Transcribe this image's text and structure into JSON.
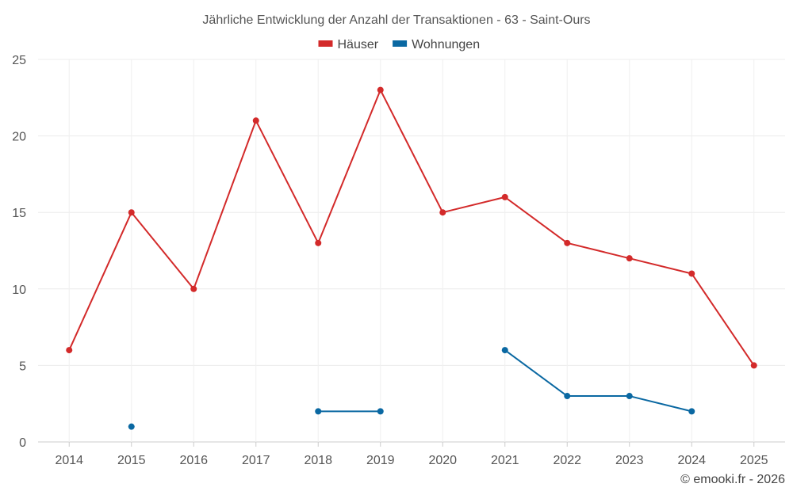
{
  "chart_data": {
    "type": "line",
    "title": "Jährliche Entwicklung der Anzahl der Transaktionen - 63 - Saint-Ours",
    "categories": [
      "2014",
      "2015",
      "2016",
      "2017",
      "2018",
      "2019",
      "2020",
      "2021",
      "2022",
      "2023",
      "2024",
      "2025"
    ],
    "ylim": [
      0,
      25
    ],
    "yticks": [
      0,
      5,
      10,
      15,
      20,
      25
    ],
    "grid": true,
    "legend_position": "top-center",
    "series": [
      {
        "name": "Häuser",
        "color": "#d32a2a",
        "values": [
          6,
          15,
          10,
          21,
          13,
          23,
          15,
          16,
          13,
          12,
          11,
          5
        ]
      },
      {
        "name": "Wohnungen",
        "color": "#0a68a2",
        "values": [
          null,
          1,
          null,
          null,
          2,
          2,
          null,
          6,
          3,
          3,
          2,
          null
        ]
      }
    ],
    "credit": "© emooki.fr - 2026"
  }
}
